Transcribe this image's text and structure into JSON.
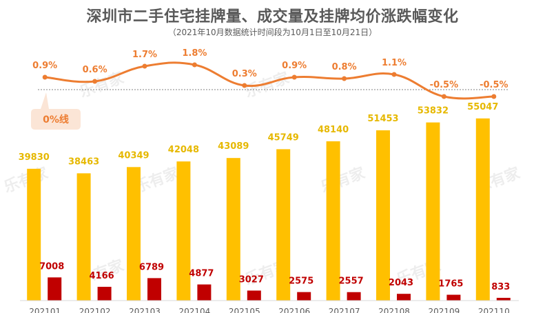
{
  "header": {
    "title": "深圳市二手住宅挂牌量、成交量及挂牌均价涨跌幅变化",
    "subtitle": "（2021年10月数据统计时间段为10月1日至10月21日）"
  },
  "watermark": {
    "text": "乐有家"
  },
  "colors": {
    "listings_bar": "#FFC000",
    "deals_bar": "#C00000",
    "price_line": "#ED7D31",
    "listings_label": "#E6B800",
    "deals_label": "#C00000",
    "zero_box_fill": "#FBE5D6",
    "zero_box_text": "#ED7D31",
    "baseline": "#D9D9D9",
    "zero_line": "#7F7F7F"
  },
  "chart_data": {
    "type": "bar",
    "categories": [
      "202101",
      "202102",
      "202103",
      "202104",
      "202105",
      "202106",
      "202107",
      "202108",
      "202109",
      "202110"
    ],
    "series": [
      {
        "values": [
          39830,
          38463,
          40349,
          42048,
          43089,
          45749,
          48140,
          51453,
          53832,
          55047
        ],
        "data_labels": [
          "39830",
          "38463",
          "40349",
          "42048",
          "43089",
          "45749",
          "48140",
          "51453",
          "53832",
          "55047"
        ]
      },
      {
        "values": [
          7008,
          4166,
          6789,
          4877,
          3027,
          2575,
          2557,
          2043,
          1765,
          833
        ],
        "data_labels": [
          "7008",
          "4166",
          "6789",
          "4877",
          "3027",
          "2575",
          "2557",
          "2043",
          "1765",
          "833"
        ]
      },
      {
        "type": "line",
        "values": [
          0.9,
          0.6,
          1.7,
          1.8,
          0.3,
          0.9,
          0.8,
          1.1,
          -0.5,
          -0.5
        ],
        "data_labels": [
          "0.9%",
          "0.6%",
          "1.7%",
          "1.8%",
          "0.3%",
          "0.9%",
          "0.8%",
          "1.1%",
          "-0.5%",
          "-0.5%"
        ]
      }
    ],
    "bar_ylim": [
      0,
      60000
    ],
    "line_ylim": [
      -0.5,
      1.8
    ],
    "reference_line": {
      "value": 0,
      "label": "0%线"
    },
    "grid": false
  }
}
